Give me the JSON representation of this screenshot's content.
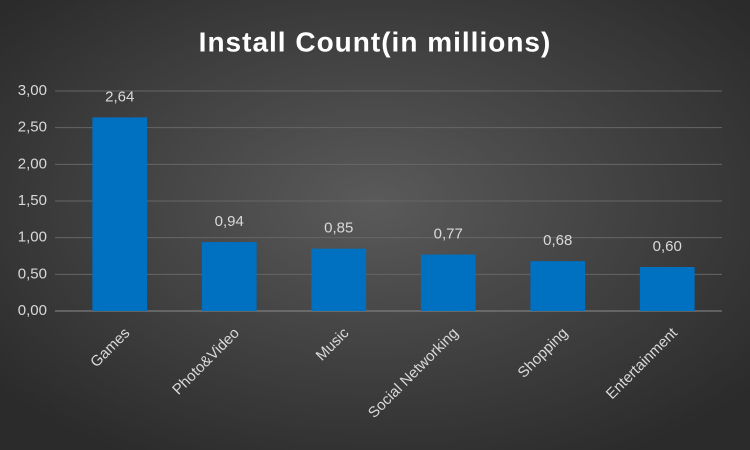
{
  "chart_data": {
    "type": "bar",
    "title": "Install Count(in millions)",
    "categories": [
      "Games",
      "Photo&Video",
      "Music",
      "Social Networking",
      "Shopping",
      "Entertainment"
    ],
    "values": [
      2.64,
      0.94,
      0.85,
      0.77,
      0.68,
      0.6
    ],
    "value_labels": [
      "2,64",
      "0,94",
      "0,85",
      "0,77",
      "0,68",
      "0,60"
    ],
    "color": "#0070c0",
    "ylim": [
      0,
      3
    ],
    "yticks": [
      {
        "value": 0,
        "label": "0,00"
      },
      {
        "value": 0.5,
        "label": "0,50"
      },
      {
        "value": 1,
        "label": "1,00"
      },
      {
        "value": 1.5,
        "label": "1,50"
      },
      {
        "value": 2,
        "label": "2,00"
      },
      {
        "value": 2.5,
        "label": "2,50"
      },
      {
        "value": 3,
        "label": "3,00"
      }
    ],
    "grid": true
  }
}
